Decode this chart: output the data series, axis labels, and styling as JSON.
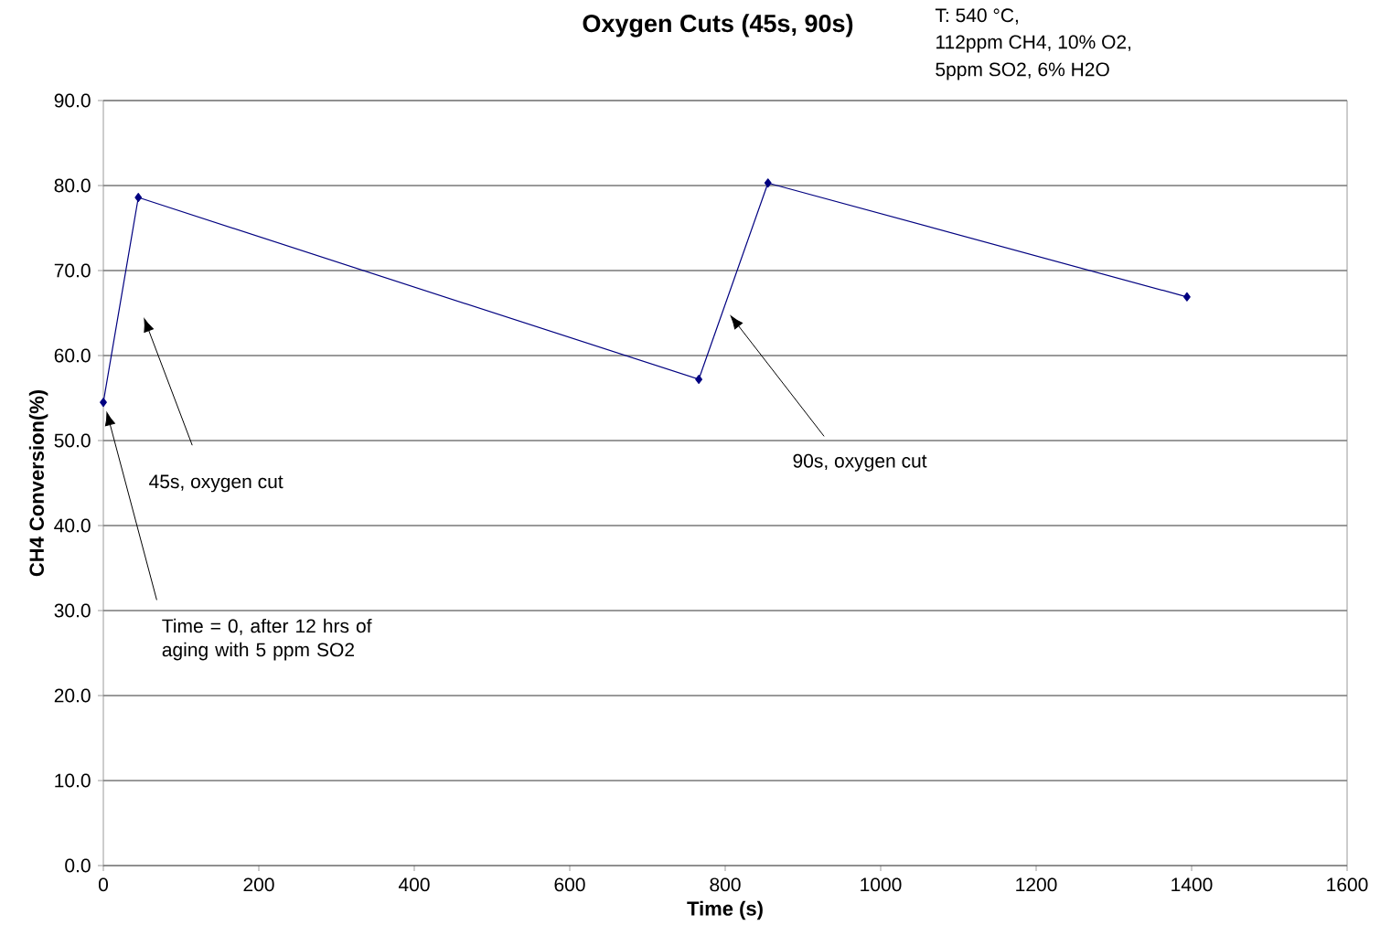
{
  "chart_data": {
    "type": "line",
    "title": "Oxygen Cuts (45s, 90s)",
    "xlabel": "Time (s)",
    "ylabel": "CH4 Conversion(%)",
    "x": [
      0,
      45,
      766,
      855,
      1394
    ],
    "values": [
      54.5,
      78.6,
      57.2,
      80.3,
      66.9
    ],
    "color": "#000080",
    "marker": "diamond",
    "line_style": "solid",
    "grid": "y",
    "xlim": [
      0,
      1600
    ],
    "xticks": [
      0,
      200,
      400,
      600,
      800,
      1000,
      1200,
      1400,
      1600
    ],
    "ylim": [
      0,
      90
    ],
    "yticks": [
      {
        "value": 0,
        "label": "0.0"
      },
      {
        "value": 10,
        "label": "10.0"
      },
      {
        "value": 20,
        "label": "20.0"
      },
      {
        "value": 30,
        "label": "30.0"
      },
      {
        "value": 40,
        "label": "40.0"
      },
      {
        "value": 50,
        "label": "50.0"
      },
      {
        "value": 60,
        "label": "60.0"
      },
      {
        "value": 70,
        "label": "70.0"
      },
      {
        "value": 80,
        "label": "80.0"
      },
      {
        "value": 90,
        "label": "90.0"
      }
    ],
    "annotations": [
      "T: 540 °C,",
      "112ppm CH4, 10% O2,",
      "5ppm SO2, 6% H2O",
      "Time = 0, after 12 hrs of aging with 5 ppm SO2",
      "45s, oxygen cut",
      "90s, oxygen cut"
    ]
  }
}
